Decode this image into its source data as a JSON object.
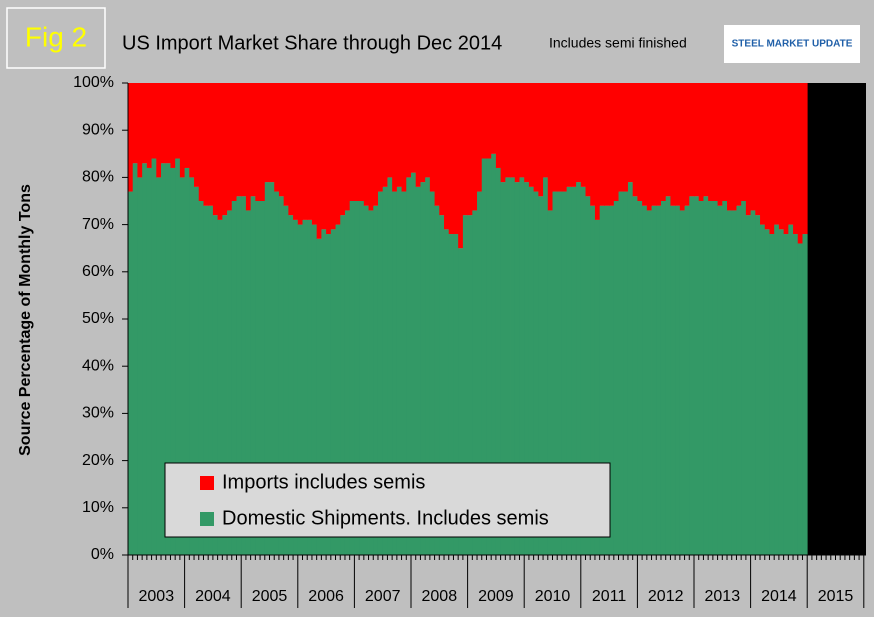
{
  "chart_data": {
    "type": "stacked_bar",
    "figure_label": "Fig 2",
    "title": "US Import Market Share through Dec 2014",
    "subtitle": "Includes semi finished",
    "logo": "STEEL MARKET UPDATE",
    "y_label": "Source Percentage of Monthly Tons",
    "years": [
      "2003",
      "2004",
      "2005",
      "2006",
      "2007",
      "2008",
      "2009",
      "2010",
      "2011",
      "2012",
      "2013",
      "2014",
      "2015"
    ],
    "ylim": [
      0,
      100
    ],
    "yticks": [
      {
        "value": 0,
        "label": "0%"
      },
      {
        "value": 10,
        "label": "10%"
      },
      {
        "value": 20,
        "label": "20%"
      },
      {
        "value": 30,
        "label": "30%"
      },
      {
        "value": 40,
        "label": "40%"
      },
      {
        "value": 50,
        "label": "50%"
      },
      {
        "value": 60,
        "label": "60%"
      },
      {
        "value": 70,
        "label": "70%"
      },
      {
        "value": 80,
        "label": "80%"
      },
      {
        "value": 90,
        "label": "90%"
      },
      {
        "value": 100,
        "label": "100%"
      }
    ],
    "series": [
      {
        "name": "Domestic Shipments. Includes semis",
        "color": "#339966",
        "values": [
          77,
          83,
          80,
          83,
          82,
          84,
          80,
          83,
          83,
          82,
          84,
          80,
          82,
          80,
          78,
          75,
          74,
          74,
          72,
          71,
          72,
          73,
          75,
          76,
          76,
          73,
          76,
          75,
          75,
          79,
          79,
          77,
          76,
          74,
          72,
          71,
          70,
          71,
          71,
          70,
          67,
          69,
          68,
          69,
          70,
          72,
          73,
          75,
          75,
          75,
          74,
          73,
          74,
          77,
          78,
          80,
          77,
          78,
          77,
          80,
          81,
          78,
          79,
          80,
          77,
          74,
          72,
          69,
          68,
          68,
          65,
          72,
          72,
          73,
          77,
          84,
          84,
          85,
          82,
          79,
          80,
          80,
          79,
          80,
          79,
          78,
          77,
          76,
          80,
          73,
          77,
          77,
          77,
          78,
          78,
          79,
          78,
          76,
          74,
          71,
          74,
          74,
          74,
          75,
          77,
          77,
          79,
          76,
          75,
          74,
          73,
          74,
          74,
          75,
          76,
          74,
          74,
          73,
          74,
          76,
          76,
          75,
          76,
          75,
          75,
          74,
          75,
          73,
          73,
          74,
          75,
          72,
          73,
          72,
          70,
          69,
          68,
          70,
          69,
          68,
          70,
          68,
          66,
          68
        ]
      },
      {
        "name": "Imports includes semis",
        "color": "#ff0000",
        "values": [
          23,
          17,
          20,
          17,
          18,
          16,
          20,
          17,
          17,
          18,
          16,
          20,
          18,
          20,
          22,
          25,
          26,
          26,
          28,
          29,
          28,
          27,
          25,
          24,
          24,
          27,
          24,
          25,
          25,
          21,
          21,
          23,
          24,
          26,
          28,
          29,
          30,
          29,
          29,
          30,
          33,
          31,
          32,
          31,
          30,
          28,
          27,
          25,
          25,
          25,
          26,
          27,
          26,
          23,
          22,
          20,
          23,
          22,
          23,
          20,
          19,
          22,
          21,
          20,
          23,
          26,
          28,
          31,
          32,
          32,
          35,
          28,
          28,
          27,
          23,
          16,
          16,
          15,
          18,
          21,
          20,
          20,
          21,
          20,
          21,
          22,
          23,
          24,
          20,
          27,
          23,
          23,
          23,
          22,
          22,
          21,
          22,
          24,
          26,
          29,
          26,
          26,
          26,
          25,
          23,
          23,
          21,
          24,
          25,
          26,
          27,
          26,
          26,
          25,
          24,
          26,
          26,
          27,
          26,
          24,
          24,
          25,
          24,
          25,
          25,
          26,
          25,
          27,
          27,
          26,
          25,
          28,
          27,
          28,
          30,
          31,
          32,
          30,
          31,
          32,
          30,
          32,
          34,
          32
        ]
      }
    ]
  }
}
